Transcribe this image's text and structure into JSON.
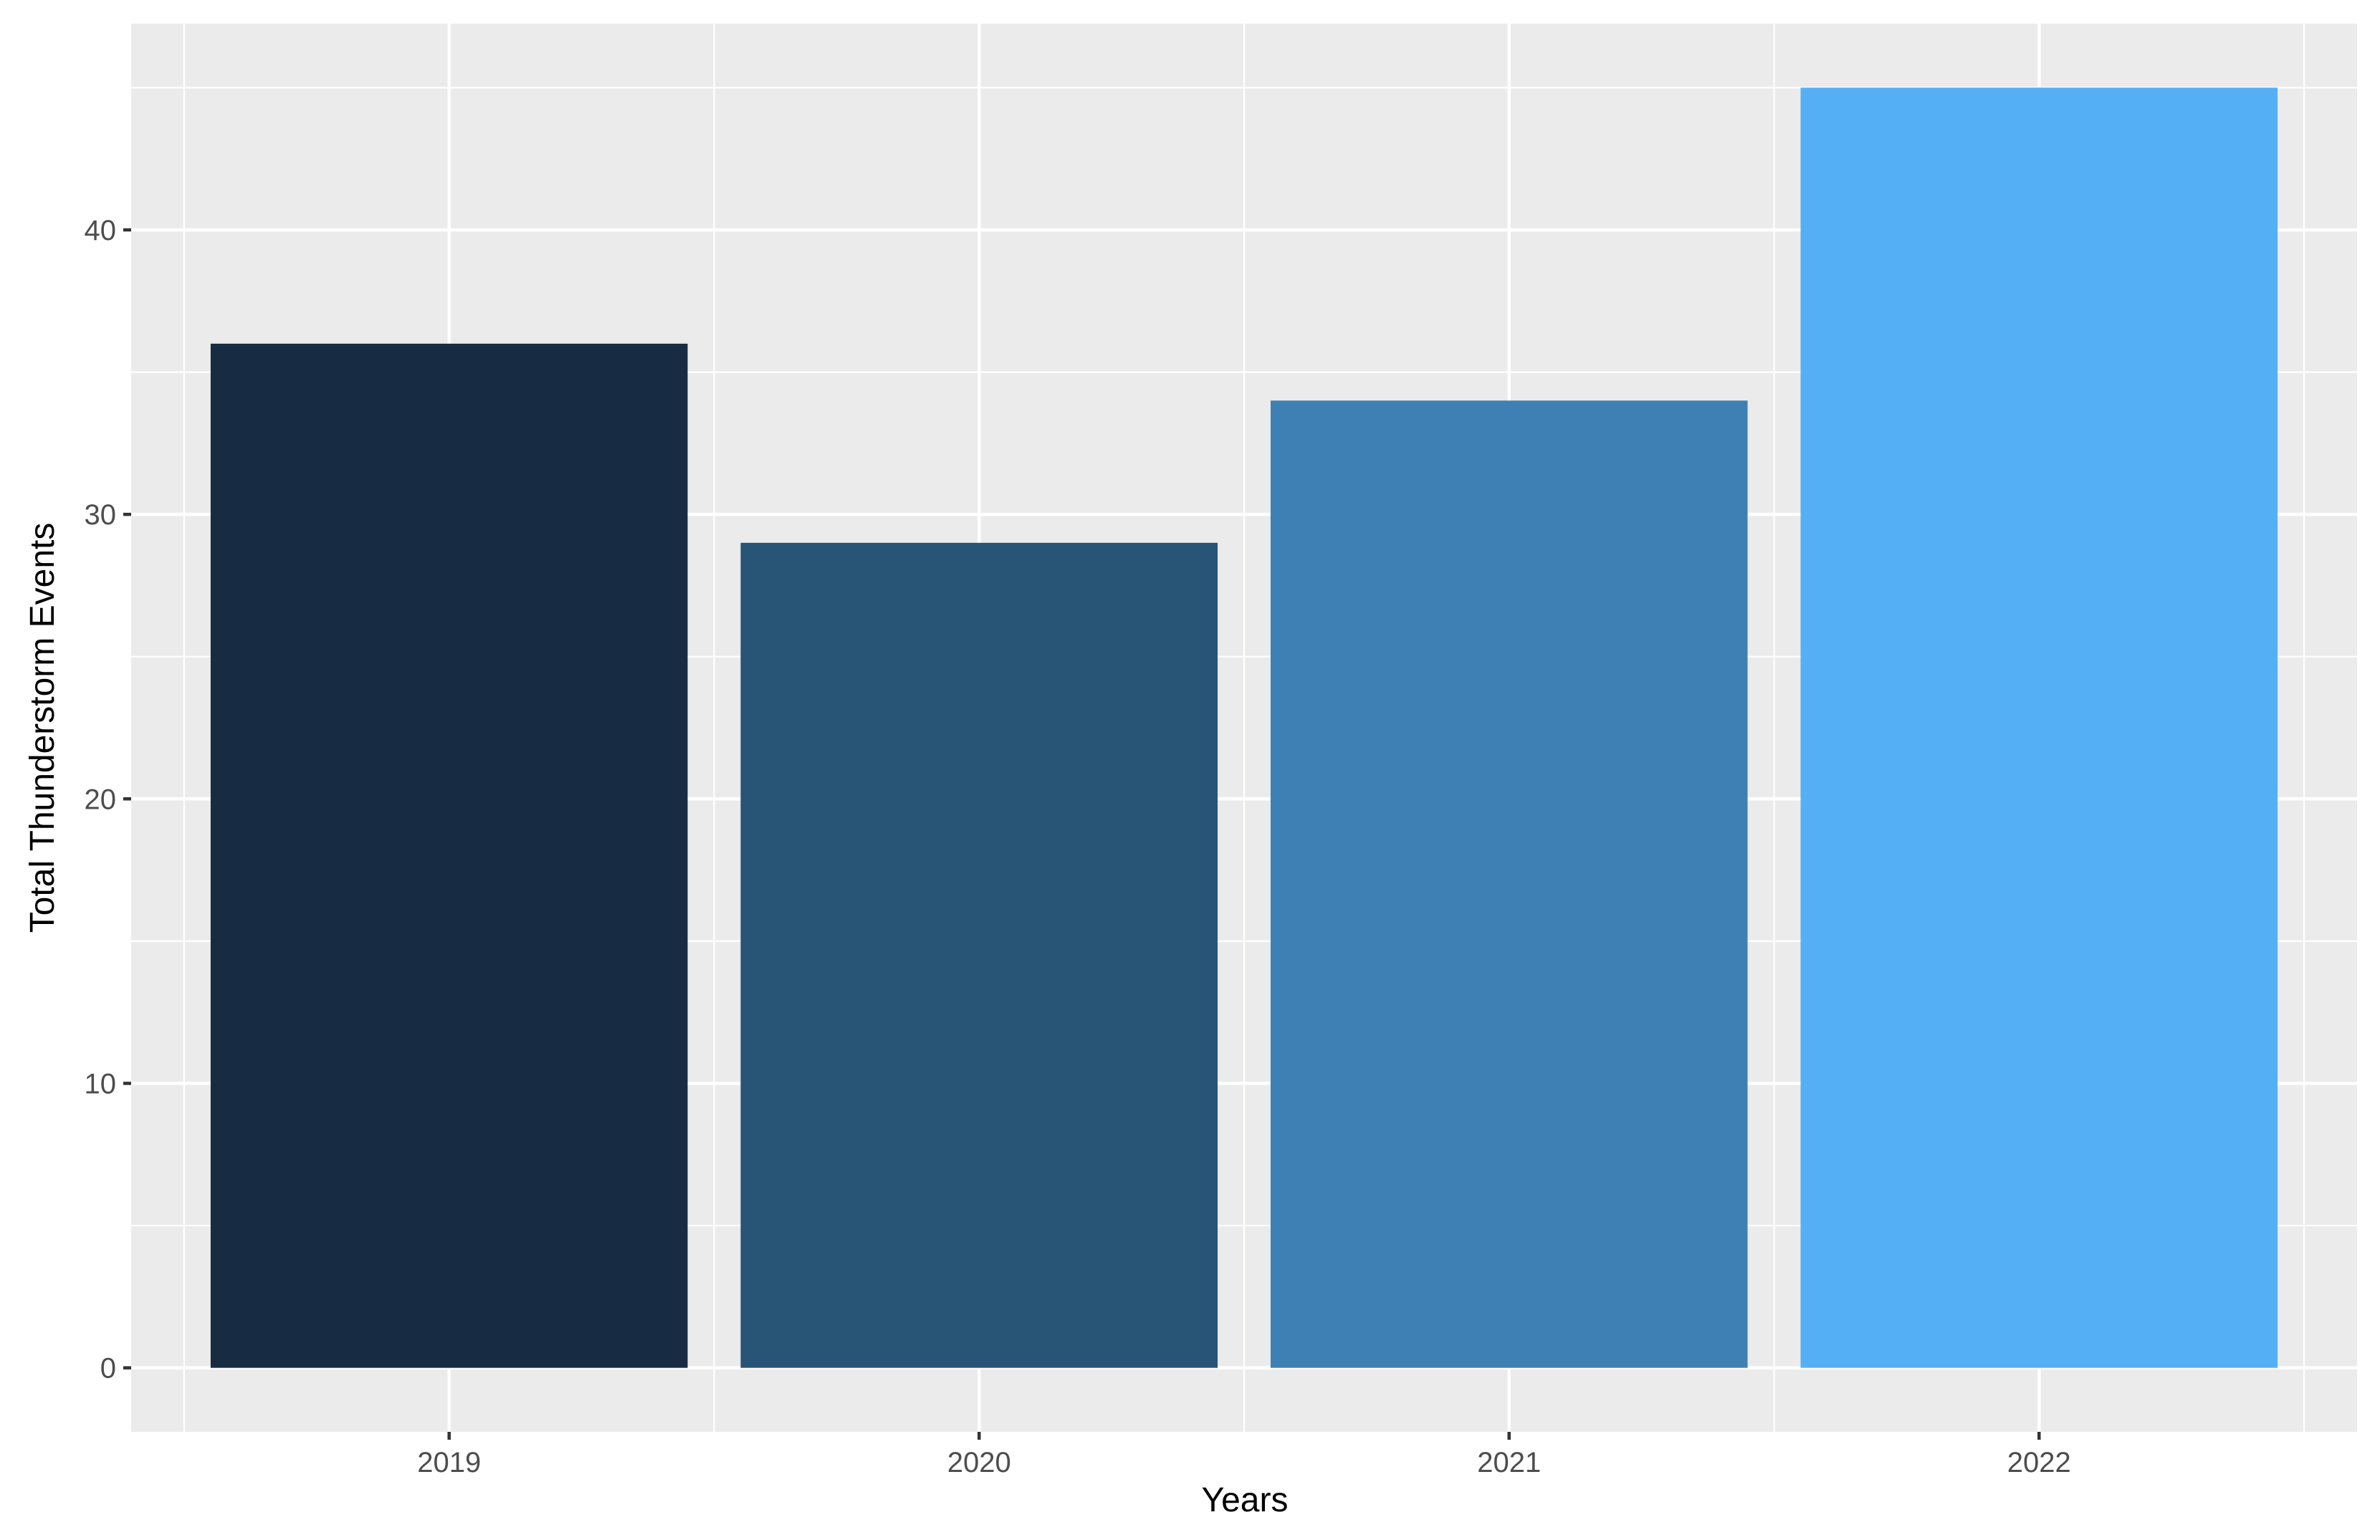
{
  "chart_data": {
    "type": "bar",
    "categories": [
      "2019",
      "2020",
      "2021",
      "2022"
    ],
    "values": [
      36,
      29,
      34,
      45
    ],
    "colors": [
      "#172b42",
      "#285476",
      "#3e80b4",
      "#55aff5"
    ],
    "xlabel": "Years",
    "ylabel": "Total Thunderstorm Events",
    "ylim": [
      -2.25,
      47.25
    ],
    "y_ticks": [
      "0",
      "10",
      "20",
      "30",
      "40"
    ],
    "y_tick_values": [
      0,
      10,
      20,
      30,
      40
    ],
    "grid": true,
    "legend": "none",
    "panel_background": "#ebebeb"
  }
}
